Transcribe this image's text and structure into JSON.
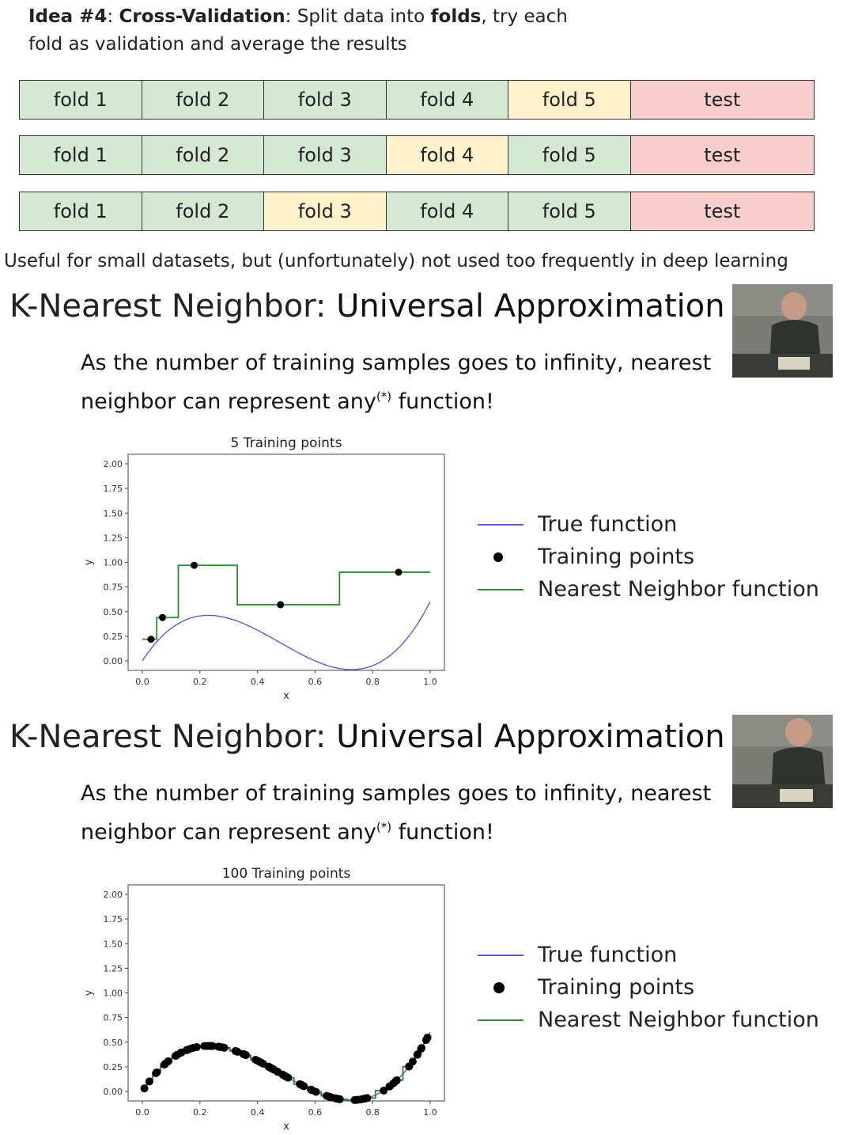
{
  "idea": {
    "label": "Idea #4",
    "sep": ": ",
    "title": "Cross-Validation",
    "text1": ": Split data into ",
    "folds": "folds",
    "text2": ", try each",
    "line2": "fold as validation and average the results"
  },
  "fold_rows": [
    {
      "cells": [
        "fold 1",
        "fold 2",
        "fold 3",
        "fold 4",
        "fold 5",
        "test"
      ],
      "validation_index": 4
    },
    {
      "cells": [
        "fold 1",
        "fold 2",
        "fold 3",
        "fold 4",
        "fold 5",
        "test"
      ],
      "validation_index": 3
    },
    {
      "cells": [
        "fold 1",
        "fold 2",
        "fold 3",
        "fold 4",
        "fold 5",
        "test"
      ],
      "validation_index": 2
    }
  ],
  "colors": {
    "train": "#d5e8d4",
    "validation": "#fff2cc",
    "test": "#f8cecc",
    "true_function": "#5b5bd6",
    "nn_function": "#2b8a2b",
    "points": "#000000"
  },
  "useful_note": "Useful for small datasets, but (unfortunately) not used too frequently in deep learning",
  "slides": [
    {
      "title_light": "K-Nearest Neighbor: ",
      "title_bold": "Universal Approximation",
      "sub_line1": "As the number of training samples goes to infinity, nearest",
      "sub_line2_a": "neighbor can represent any",
      "sub_sup": "(*)",
      "sub_line2_b": " function!",
      "legend": [
        "True function",
        "Training points",
        "Nearest Neighbor function"
      ]
    },
    {
      "title_light": "K-Nearest Neighbor: ",
      "title_bold": "Universal Approximation",
      "sub_line1": "As the number of training samples goes to infinity, nearest",
      "sub_line2_a": "neighbor can represent any",
      "sub_sup": "(*)",
      "sub_line2_b": " function!",
      "legend": [
        "True function",
        "Training points",
        "Nearest Neighbor function"
      ]
    }
  ],
  "chart_data": [
    {
      "type": "line",
      "title": "5 Training points",
      "xlabel": "x",
      "ylabel": "y",
      "xlim": [
        0.0,
        1.0
      ],
      "ylim": [
        0.0,
        2.0
      ],
      "xticks": [
        "0.0",
        "0.2",
        "0.4",
        "0.6",
        "0.8",
        "1.0"
      ],
      "yticks": [
        "0.00",
        "0.25",
        "0.50",
        "0.75",
        "1.00",
        "1.25",
        "1.50",
        "1.75",
        "2.00"
      ],
      "series": [
        {
          "name": "True function",
          "kind": "function"
        },
        {
          "name": "Training points",
          "x": [
            0.03,
            0.07,
            0.18,
            0.48,
            0.89
          ],
          "y": [
            0.22,
            0.44,
            0.97,
            0.57,
            0.9
          ]
        },
        {
          "name": "Nearest Neighbor function",
          "kind": "step"
        }
      ]
    },
    {
      "type": "line",
      "title": "100 Training points",
      "xlabel": "x",
      "ylabel": "y",
      "xlim": [
        0.0,
        1.0
      ],
      "ylim": [
        0.0,
        2.0
      ],
      "xticks": [
        "0.0",
        "0.2",
        "0.4",
        "0.6",
        "0.8",
        "1.0"
      ],
      "yticks": [
        "0.00",
        "0.25",
        "0.50",
        "0.75",
        "1.00",
        "1.25",
        "1.50",
        "1.75",
        "2.00"
      ],
      "series": [
        {
          "name": "True function",
          "kind": "function"
        },
        {
          "name": "Training points",
          "count": 100
        },
        {
          "name": "Nearest Neighbor function",
          "kind": "step"
        }
      ]
    }
  ]
}
